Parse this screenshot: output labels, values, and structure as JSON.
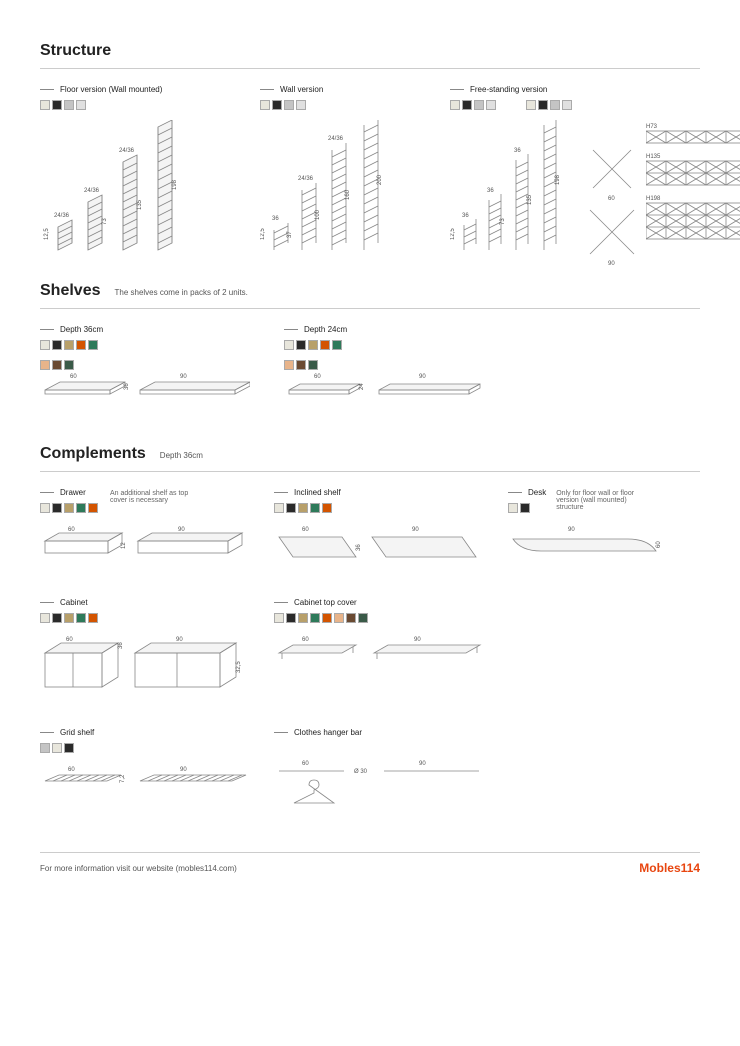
{
  "sections": {
    "structure": {
      "title": "Structure",
      "variants": [
        {
          "name": "Floor version (Wall mounted)",
          "swatches": [
            "#e8e6dc",
            "#2a2a2a",
            "#c4c4c4",
            "#e0e0e0"
          ],
          "ladders": [
            {
              "w_label": "12,5",
              "h_label": "36",
              "top_label": "24/36"
            },
            {
              "w_label": "",
              "h_label": "73",
              "top_label": "24/36"
            },
            {
              "w_label": "",
              "h_label": "135",
              "top_label": "24/36"
            },
            {
              "w_label": "",
              "h_label": "198",
              "top_label": "24/36"
            }
          ]
        },
        {
          "name": "Wall version",
          "swatches": [
            "#e8e6dc",
            "#2a2a2a",
            "#c4c4c4",
            "#e0e0e0"
          ],
          "ladders": [
            {
              "w_label": "12,5",
              "h_label": "37",
              "top_label": "36"
            },
            {
              "w_label": "",
              "h_label": "100",
              "top_label": "24/36"
            },
            {
              "w_label": "",
              "h_label": "160",
              "top_label": "24/36"
            },
            {
              "w_label": "",
              "h_label": "200",
              "top_label": "24/36"
            }
          ]
        },
        {
          "name": "Free-standing version",
          "swatches": [
            "#e8e6dc",
            "#2a2a2a",
            "#c4c4c4",
            "#e0e0e0"
          ],
          "ladders": [
            {
              "w_label": "12,5",
              "h_label": "36",
              "top_label": "36"
            },
            {
              "w_label": "",
              "h_label": "73",
              "top_label": "36"
            },
            {
              "w_label": "",
              "h_label": "135",
              "top_label": "36"
            },
            {
              "w_label": "",
              "h_label": "198",
              "top_label": "36"
            }
          ],
          "crosses": [
            {
              "w": "60"
            },
            {
              "w": "90"
            }
          ],
          "grids": [
            {
              "label": "H73"
            },
            {
              "label": "H135"
            },
            {
              "label": "H198"
            }
          ]
        }
      ]
    },
    "shelves": {
      "title": "Shelves",
      "note": "The shelves come in packs of 2 units.",
      "depths": [
        {
          "title": "Depth 36cm",
          "swatches_row1": [
            "#e8e6dc",
            "#2a2a2a",
            "#b8a06a",
            "#d35400",
            "#2e7a5a"
          ],
          "swatches_row2": [
            "#e8b48a",
            "#6a4a32",
            "#3a5a48"
          ],
          "widths": [
            "60",
            "90"
          ],
          "depth_dim": "36"
        },
        {
          "title": "Depth 24cm",
          "swatches_row1": [
            "#e8e6dc",
            "#2a2a2a",
            "#b8a06a",
            "#d35400",
            "#2e7a5a"
          ],
          "swatches_row2": [
            "#e8b48a",
            "#6a4a32",
            "#3a5a48"
          ],
          "widths": [
            "60",
            "90"
          ],
          "depth_dim": "24"
        }
      ]
    },
    "complements": {
      "title": "Complements",
      "note": "Depth 36cm",
      "items": [
        {
          "name": "Drawer",
          "note": "An additional shelf as top cover is necessary",
          "swatches": [
            "#e8e6dc",
            "#2a2a2a",
            "#b8a06a",
            "#2e7a5a",
            "#d35400"
          ],
          "widths": [
            "60",
            "90"
          ],
          "h_dim": "12"
        },
        {
          "name": "Inclined shelf",
          "swatches": [
            "#e8e6dc",
            "#2a2a2a",
            "#b8a06a",
            "#2e7a5a",
            "#d35400"
          ],
          "widths": [
            "60",
            "90"
          ],
          "h_dim": "36"
        },
        {
          "name": "Desk",
          "note": "Only for floor wall or floor version (wall mounted) structure",
          "swatches": [
            "#e8e6dc",
            "#2a2a2a"
          ],
          "widths": [
            "90"
          ],
          "h_dim": "60"
        },
        {
          "name": "Cabinet",
          "swatches": [
            "#e8e6dc",
            "#2a2a2a",
            "#b8a06a",
            "#2e7a5a",
            "#d35400"
          ],
          "widths": [
            "60",
            "90"
          ],
          "h_dim": "32,5",
          "d_dim": "36"
        },
        {
          "name": "Cabinet top cover",
          "swatches": [
            "#e8e6dc",
            "#2a2a2a",
            "#b8a06a",
            "#2e7a5a",
            "#d35400",
            "#e8b48a",
            "#6a4a32",
            "#3a5a48"
          ],
          "widths": [
            "60",
            "90"
          ]
        },
        {
          "name": "Grid shelf",
          "swatches": [
            "#c4c4c4",
            "#e8e6dc",
            "#2a2a2a"
          ],
          "widths": [
            "60",
            "90"
          ],
          "h_dim": "7,2"
        },
        {
          "name": "Clothes hanger bar",
          "widths": [
            "60",
            "90"
          ],
          "diam": "Ø 30"
        }
      ]
    }
  },
  "footer": {
    "text": "For more information visit our website (mobles114.com)",
    "brand": "Mobles114"
  },
  "colors": {
    "stroke": "#888888",
    "brand": "#e84610"
  }
}
